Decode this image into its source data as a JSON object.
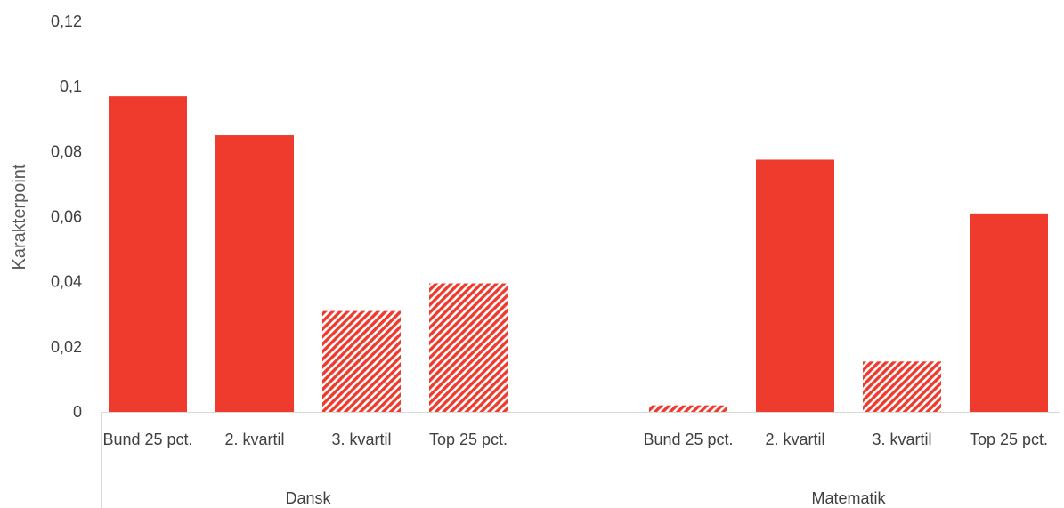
{
  "chart_data": {
    "type": "bar",
    "ylabel": "Karakterpoint",
    "ylim": [
      0,
      0.12
    ],
    "yticks": [
      "0",
      "0,02",
      "0,04",
      "0,06",
      "0,08",
      "0,1",
      "0,12"
    ],
    "grid": false,
    "colors": {
      "bar": "#ee3b2e"
    },
    "groups": [
      {
        "name": "Dansk",
        "categories": [
          "Bund 25 pct.",
          "2. kvartil",
          "3. kvartil",
          "Top 25 pct."
        ],
        "values": [
          0.097,
          0.085,
          0.031,
          0.0395
        ],
        "hatched": [
          false,
          false,
          true,
          true
        ]
      },
      {
        "name": "Matematik",
        "categories": [
          "Bund 25 pct.",
          "2. kvartil",
          "3. kvartil",
          "Top 25 pct."
        ],
        "values": [
          0.002,
          0.0775,
          0.0155,
          0.061
        ],
        "hatched": [
          true,
          false,
          true,
          false
        ]
      }
    ]
  }
}
